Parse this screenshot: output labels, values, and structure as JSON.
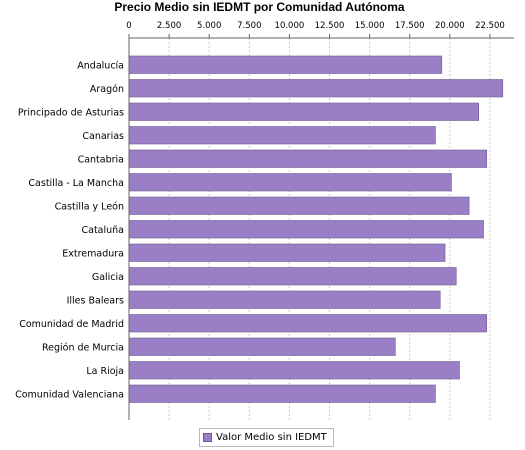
{
  "chart_data": {
    "type": "bar",
    "orientation": "horizontal",
    "title": "Precio Medio sin IEDMT por Comunidad Autónoma",
    "categories": [
      "Andalucía",
      "Aragón",
      "Principado de Asturias",
      "Canarias",
      "Cantabria",
      "Castilla - La Mancha",
      "Castilla y León",
      "Cataluña",
      "Extremadura",
      "Galicia",
      "Illes Balears",
      "Comunidad de Madrid",
      "Región de Murcia",
      "La Rioja",
      "Comunidad Valenciana"
    ],
    "series": [
      {
        "name": "Valor Medio sin IEDMT",
        "color": "#9b7fc6",
        "values": [
          19500,
          23300,
          21800,
          19100,
          22300,
          20100,
          21200,
          22100,
          19700,
          20400,
          19400,
          22300,
          16600,
          20600,
          19100
        ]
      }
    ],
    "xlim": [
      0,
      24000
    ],
    "ticks": [
      "0",
      "2.500",
      "5.000",
      "7.500",
      "10.000",
      "12.500",
      "15.000",
      "17.500",
      "20.000",
      "22.500"
    ],
    "tick_values": [
      0,
      2500,
      5000,
      7500,
      10000,
      12500,
      15000,
      17500,
      20000,
      22500
    ],
    "axis_position": "top",
    "grid": true,
    "legend_position": "bottom"
  }
}
